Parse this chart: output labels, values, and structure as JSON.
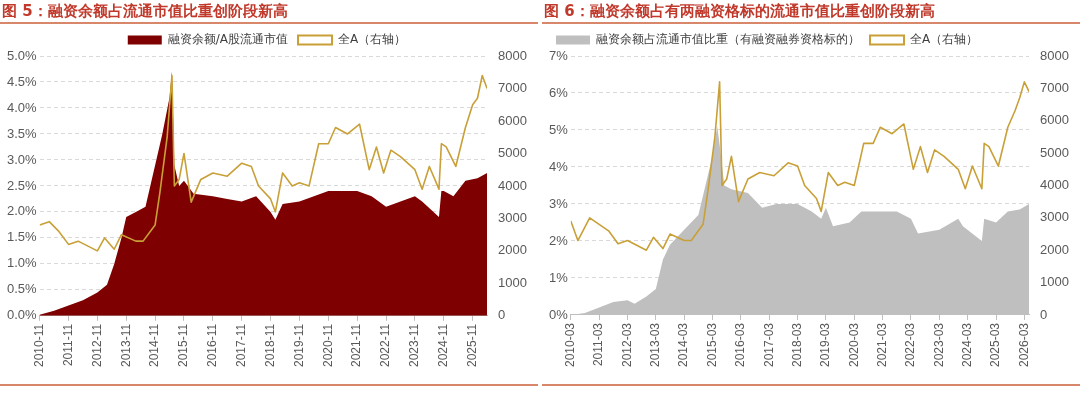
{
  "chart_data": [
    {
      "type": "area",
      "title": "图 5：融资余额占流通市值比重创阶段新高",
      "legend": "top",
      "grid": "y",
      "xlim": [
        "2010-11",
        "2026-05"
      ],
      "xticks": [
        "2010-11",
        "2011-11",
        "2012-11",
        "2013-11",
        "2014-11",
        "2015-11",
        "2016-11",
        "2017-11",
        "2018-11",
        "2019-11",
        "2020-11",
        "2021-11",
        "2022-11",
        "2023-11",
        "2024-11",
        "2025-11"
      ],
      "ylim": [
        0,
        5
      ],
      "yticks": [
        {
          "value": 0,
          "label": "0.0%"
        },
        {
          "value": 0.5,
          "label": "0.5%"
        },
        {
          "value": 1,
          "label": "1.0%"
        },
        {
          "value": 1.5,
          "label": "1.5%"
        },
        {
          "value": 2,
          "label": "2.0%"
        },
        {
          "value": 2.5,
          "label": "2.5%"
        },
        {
          "value": 3,
          "label": "3.0%"
        },
        {
          "value": 3.5,
          "label": "3.5%"
        },
        {
          "value": 4,
          "label": "4.0%"
        },
        {
          "value": 4.5,
          "label": "4.5%"
        },
        {
          "value": 5,
          "label": "5.0%"
        }
      ],
      "y2lim": [
        0,
        8000
      ],
      "y2ticks": [
        0,
        1000,
        2000,
        3000,
        4000,
        5000,
        6000,
        7000,
        8000
      ],
      "series": [
        {
          "name": "融资余额/A股流通市值",
          "type": "area",
          "color": "#7f0000",
          "x": [
            "2010-11",
            "2011-05",
            "2011-11",
            "2012-05",
            "2012-11",
            "2013-03",
            "2013-06",
            "2013-09",
            "2013-11",
            "2014-03",
            "2014-07",
            "2014-11",
            "2015-02",
            "2015-05",
            "2015-06",
            "2015-07",
            "2015-09",
            "2015-11",
            "2016-03",
            "2016-11",
            "2017-05",
            "2017-11",
            "2018-05",
            "2018-11",
            "2019-01",
            "2019-04",
            "2019-11",
            "2020-05",
            "2020-11",
            "2021-05",
            "2021-11",
            "2022-05",
            "2022-11",
            "2023-05",
            "2023-11",
            "2024-02",
            "2024-09",
            "2024-10",
            "2024-11",
            "2025-03",
            "2025-08",
            "2026-01",
            "2026-05"
          ],
          "values": [
            0.02,
            0.1,
            0.2,
            0.3,
            0.45,
            0.6,
            1.0,
            1.5,
            1.9,
            2.0,
            2.1,
            2.9,
            3.5,
            4.2,
            4.7,
            2.9,
            2.5,
            2.6,
            2.35,
            2.3,
            2.25,
            2.2,
            2.3,
            2.0,
            1.85,
            2.15,
            2.2,
            2.3,
            2.4,
            2.4,
            2.4,
            2.3,
            2.1,
            2.2,
            2.3,
            2.2,
            1.9,
            2.4,
            2.4,
            2.3,
            2.6,
            2.65,
            2.75
          ]
        },
        {
          "name": "全A（右轴）",
          "type": "line",
          "axis": "y2",
          "color": "#c9a038",
          "x": [
            "2010-11",
            "2011-03",
            "2011-07",
            "2011-11",
            "2012-03",
            "2012-11",
            "2013-02",
            "2013-06",
            "2013-09",
            "2014-03",
            "2014-06",
            "2014-11",
            "2015-01",
            "2015-04",
            "2015-06",
            "2015-07",
            "2015-09",
            "2015-11",
            "2016-02",
            "2016-06",
            "2016-11",
            "2017-05",
            "2017-11",
            "2018-03",
            "2018-06",
            "2018-11",
            "2019-01",
            "2019-04",
            "2019-08",
            "2019-11",
            "2020-03",
            "2020-07",
            "2020-11",
            "2021-02",
            "2021-07",
            "2021-12",
            "2022-04",
            "2022-07",
            "2022-10",
            "2023-01",
            "2023-05",
            "2023-11",
            "2024-02",
            "2024-05",
            "2024-09",
            "2024-10",
            "2024-12",
            "2025-04",
            "2025-08",
            "2025-11",
            "2026-01",
            "2026-03",
            "2026-05"
          ],
          "values": [
            2800,
            2900,
            2600,
            2200,
            2300,
            2000,
            2400,
            2050,
            2500,
            2300,
            2300,
            2800,
            3800,
            5500,
            7400,
            4000,
            4200,
            5000,
            3500,
            4200,
            4400,
            4300,
            4700,
            4600,
            4000,
            3600,
            3200,
            4400,
            4000,
            4100,
            4000,
            5300,
            5300,
            5800,
            5600,
            5900,
            4500,
            5200,
            4400,
            5100,
            4900,
            4500,
            3900,
            4600,
            3900,
            5300,
            5200,
            4600,
            5800,
            6500,
            6700,
            7400,
            7000
          ]
        }
      ]
    },
    {
      "type": "area",
      "title": "图 6：融资余额占有两融资格标的流通市值比重创阶段新高",
      "legend": "top left",
      "grid": "y",
      "xlim": [
        "2010-03",
        "2026-05"
      ],
      "xticks": [
        "2010-03",
        "2011-03",
        "2012-03",
        "2013-03",
        "2014-03",
        "2015-03",
        "2016-03",
        "2017-03",
        "2018-03",
        "2019-03",
        "2020-03",
        "2021-03",
        "2022-03",
        "2023-03",
        "2024-03",
        "2025-03",
        "2026-03"
      ],
      "ylim": [
        0,
        7
      ],
      "yticks": [
        {
          "value": 0,
          "label": "0%"
        },
        {
          "value": 1,
          "label": "1%"
        },
        {
          "value": 2,
          "label": "2%"
        },
        {
          "value": 3,
          "label": "3%"
        },
        {
          "value": 4,
          "label": "4%"
        },
        {
          "value": 5,
          "label": "5%"
        },
        {
          "value": 6,
          "label": "6%"
        },
        {
          "value": 7,
          "label": "7%"
        }
      ],
      "y2lim": [
        0,
        8000
      ],
      "y2ticks": [
        0,
        1000,
        2000,
        3000,
        4000,
        5000,
        6000,
        7000,
        8000
      ],
      "series": [
        {
          "name": "融资余额占流通市值比重（有融资融券资格标的）",
          "type": "area",
          "color": "#bfbfbf",
          "x": [
            "2010-03",
            "2010-09",
            "2011-03",
            "2011-09",
            "2012-03",
            "2012-06",
            "2012-11",
            "2013-03",
            "2013-06",
            "2013-09",
            "2014-03",
            "2014-09",
            "2014-12",
            "2015-03",
            "2015-05",
            "2015-06",
            "2015-08",
            "2015-11",
            "2016-06",
            "2016-12",
            "2017-06",
            "2018-03",
            "2018-09",
            "2019-01",
            "2019-03",
            "2019-06",
            "2020-01",
            "2020-06",
            "2021-03",
            "2021-09",
            "2022-03",
            "2022-06",
            "2023-03",
            "2023-11",
            "2024-01",
            "2024-09",
            "2024-10",
            "2025-03",
            "2025-08",
            "2026-01",
            "2026-05"
          ],
          "values": [
            0,
            0.05,
            0.2,
            0.35,
            0.4,
            0.3,
            0.5,
            0.7,
            1.5,
            1.9,
            2.3,
            2.7,
            3.5,
            4.3,
            5.1,
            4.6,
            3.5,
            3.4,
            3.3,
            2.9,
            3.0,
            3.0,
            2.8,
            2.6,
            2.9,
            2.4,
            2.5,
            2.8,
            2.8,
            2.8,
            2.6,
            2.2,
            2.3,
            2.6,
            2.4,
            2.0,
            2.6,
            2.5,
            2.8,
            2.85,
            3.0
          ]
        },
        {
          "name": "全A（右轴）",
          "type": "line",
          "axis": "y2",
          "color": "#c9a038",
          "x": [
            "2010-03",
            "2010-06",
            "2010-11",
            "2011-03",
            "2011-07",
            "2011-11",
            "2012-03",
            "2012-11",
            "2013-02",
            "2013-06",
            "2013-09",
            "2014-03",
            "2014-06",
            "2014-11",
            "2015-01",
            "2015-04",
            "2015-06",
            "2015-07",
            "2015-09",
            "2015-11",
            "2016-02",
            "2016-06",
            "2016-11",
            "2017-05",
            "2017-11",
            "2018-03",
            "2018-06",
            "2018-11",
            "2019-01",
            "2019-04",
            "2019-08",
            "2019-11",
            "2020-03",
            "2020-07",
            "2020-11",
            "2021-02",
            "2021-07",
            "2021-12",
            "2022-04",
            "2022-07",
            "2022-10",
            "2023-01",
            "2023-05",
            "2023-11",
            "2024-02",
            "2024-05",
            "2024-09",
            "2024-10",
            "2024-12",
            "2025-04",
            "2025-08",
            "2025-11",
            "2026-01",
            "2026-03",
            "2026-05"
          ],
          "values": [
            2900,
            2300,
            3000,
            2800,
            2600,
            2200,
            2300,
            2000,
            2400,
            2050,
            2500,
            2300,
            2300,
            2800,
            3800,
            5500,
            7200,
            4000,
            4200,
            4900,
            3500,
            4200,
            4400,
            4300,
            4700,
            4600,
            4000,
            3600,
            3200,
            4400,
            4000,
            4100,
            4000,
            5300,
            5300,
            5800,
            5600,
            5900,
            4500,
            5200,
            4400,
            5100,
            4900,
            4500,
            3900,
            4600,
            3900,
            5300,
            5200,
            4600,
            5800,
            6300,
            6700,
            7200,
            6900
          ]
        }
      ]
    }
  ]
}
